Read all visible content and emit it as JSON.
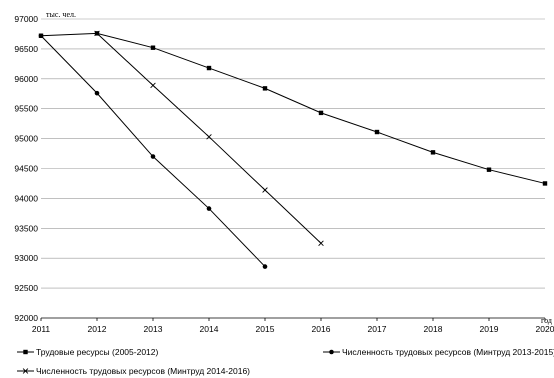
{
  "chart_data": {
    "type": "line",
    "ylabel": "тыс. чел.",
    "xlabel": "год",
    "x": [
      2011,
      2012,
      2013,
      2014,
      2015,
      2016,
      2017,
      2018,
      2019,
      2020
    ],
    "x_ticks": [
      "2011",
      "2012",
      "2013",
      "2014",
      "2015",
      "2016",
      "2017",
      "2018",
      "2019",
      "2020"
    ],
    "ylim": [
      92000,
      97000
    ],
    "y_ticks": [
      "92000",
      "92500",
      "93000",
      "93500",
      "94000",
      "94500",
      "95000",
      "95500",
      "96000",
      "96500",
      "97000"
    ],
    "grid": "horizontal",
    "legend_position": "bottom",
    "series": [
      {
        "name": "Трудовые ресурсы (2005-2012)",
        "marker": "square",
        "x": [
          2011,
          2012,
          2013,
          2014,
          2015,
          2016,
          2017,
          2018,
          2019,
          2020
        ],
        "values": [
          96720,
          96760,
          96520,
          96180,
          95840,
          95430,
          95110,
          94770,
          94480,
          94250
        ]
      },
      {
        "name": "Численность трудовых ресурсов (Минтруд 2013-2015)",
        "marker": "circle",
        "x": [
          2011,
          2012,
          2013,
          2014,
          2015
        ],
        "values": [
          96720,
          95760,
          94700,
          93830,
          92860
        ]
      },
      {
        "name": "Численность трудовых ресурсов (Минтруд 2014-2016)",
        "marker": "cross",
        "x": [
          2012,
          2013,
          2014,
          2015,
          2016
        ],
        "values": [
          96760,
          95890,
          95030,
          94140,
          93250
        ]
      }
    ]
  }
}
